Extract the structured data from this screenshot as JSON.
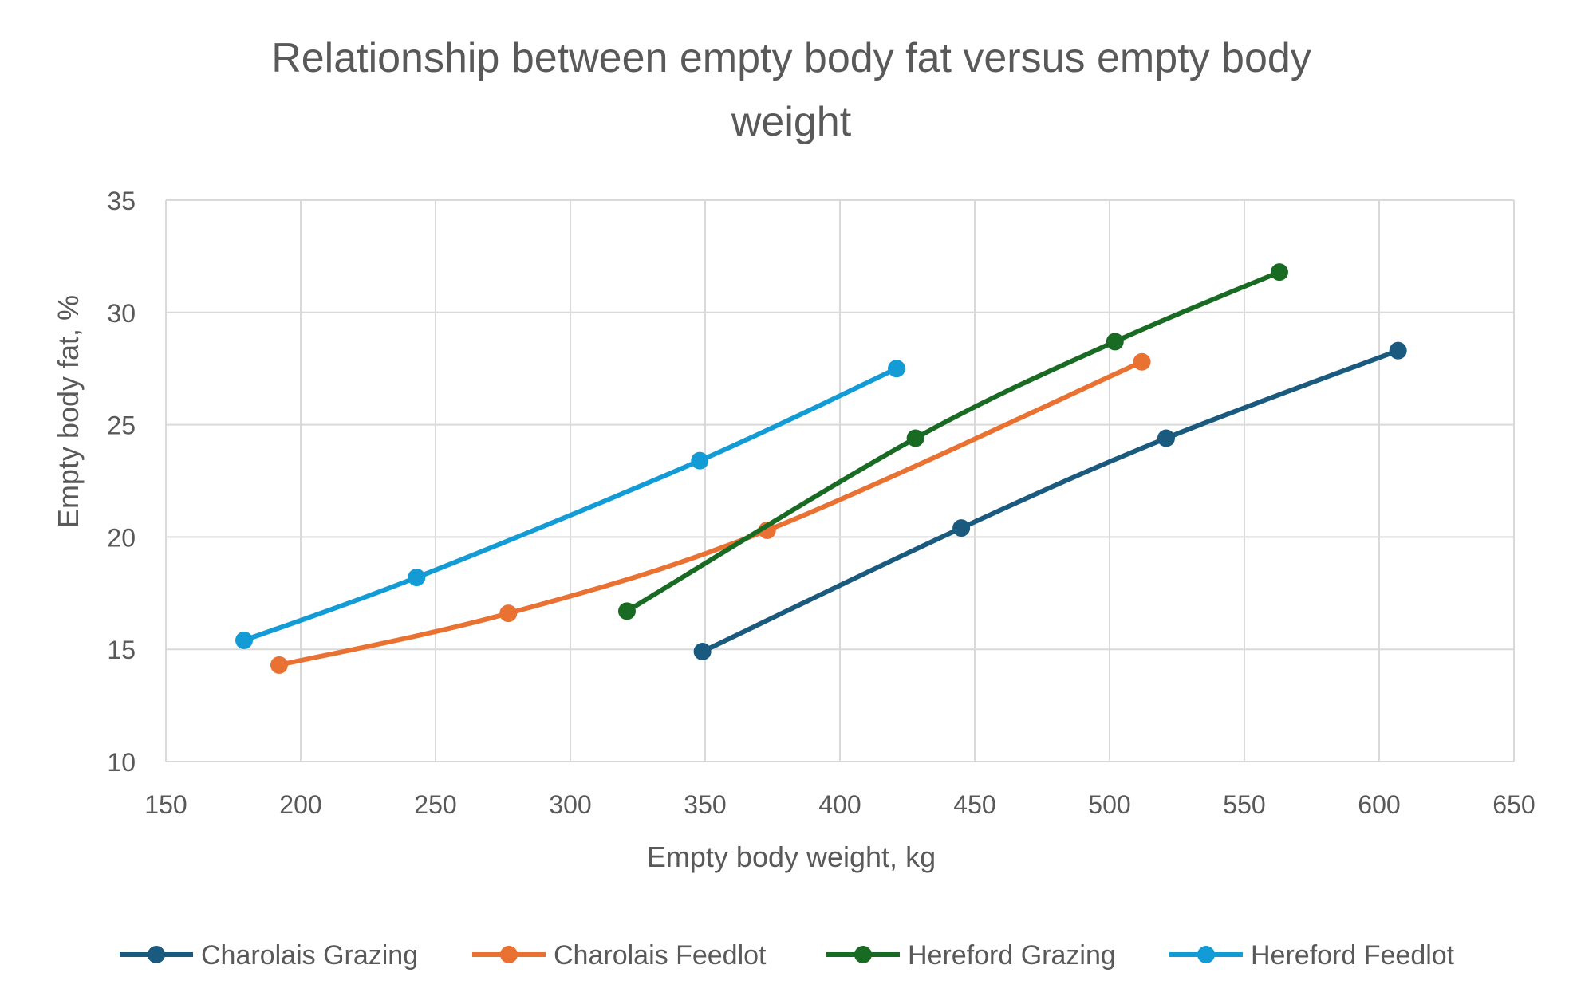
{
  "chart_data": {
    "type": "line",
    "title": "Relationship between empty body fat versus empty body weight",
    "title_lines": [
      "Relationship between empty body fat versus empty body",
      "weight"
    ],
    "xlabel": "Empty body weight, kg",
    "ylabel": "Empty body fat, %",
    "xlim": [
      150,
      650
    ],
    "ylim": [
      10,
      35
    ],
    "xticks": [
      150,
      200,
      250,
      300,
      350,
      400,
      450,
      500,
      550,
      600,
      650
    ],
    "yticks": [
      10,
      15,
      20,
      25,
      30,
      35
    ],
    "grid": true,
    "legend_position": "bottom",
    "series": [
      {
        "name": "Charolais Grazing",
        "color": "#1a5a7f",
        "points": [
          [
            349,
            14.9
          ],
          [
            445,
            20.4
          ],
          [
            521,
            24.4
          ],
          [
            607,
            28.3
          ]
        ]
      },
      {
        "name": "Charolais Feedlot",
        "color": "#e97132",
        "points": [
          [
            192,
            14.3
          ],
          [
            277,
            16.6
          ],
          [
            373,
            20.3
          ],
          [
            512,
            27.8
          ]
        ]
      },
      {
        "name": "Hereford Grazing",
        "color": "#196b24",
        "points": [
          [
            321,
            16.7
          ],
          [
            428,
            24.4
          ],
          [
            502,
            28.7
          ],
          [
            563,
            31.8
          ]
        ]
      },
      {
        "name": "Hereford Feedlot",
        "color": "#139bd6",
        "points": [
          [
            179,
            15.4
          ],
          [
            243,
            18.2
          ],
          [
            348,
            23.4
          ],
          [
            421,
            27.5
          ]
        ]
      }
    ]
  },
  "colors": {
    "text": "#595959",
    "grid": "#d9d9d9",
    "background": "#ffffff"
  }
}
